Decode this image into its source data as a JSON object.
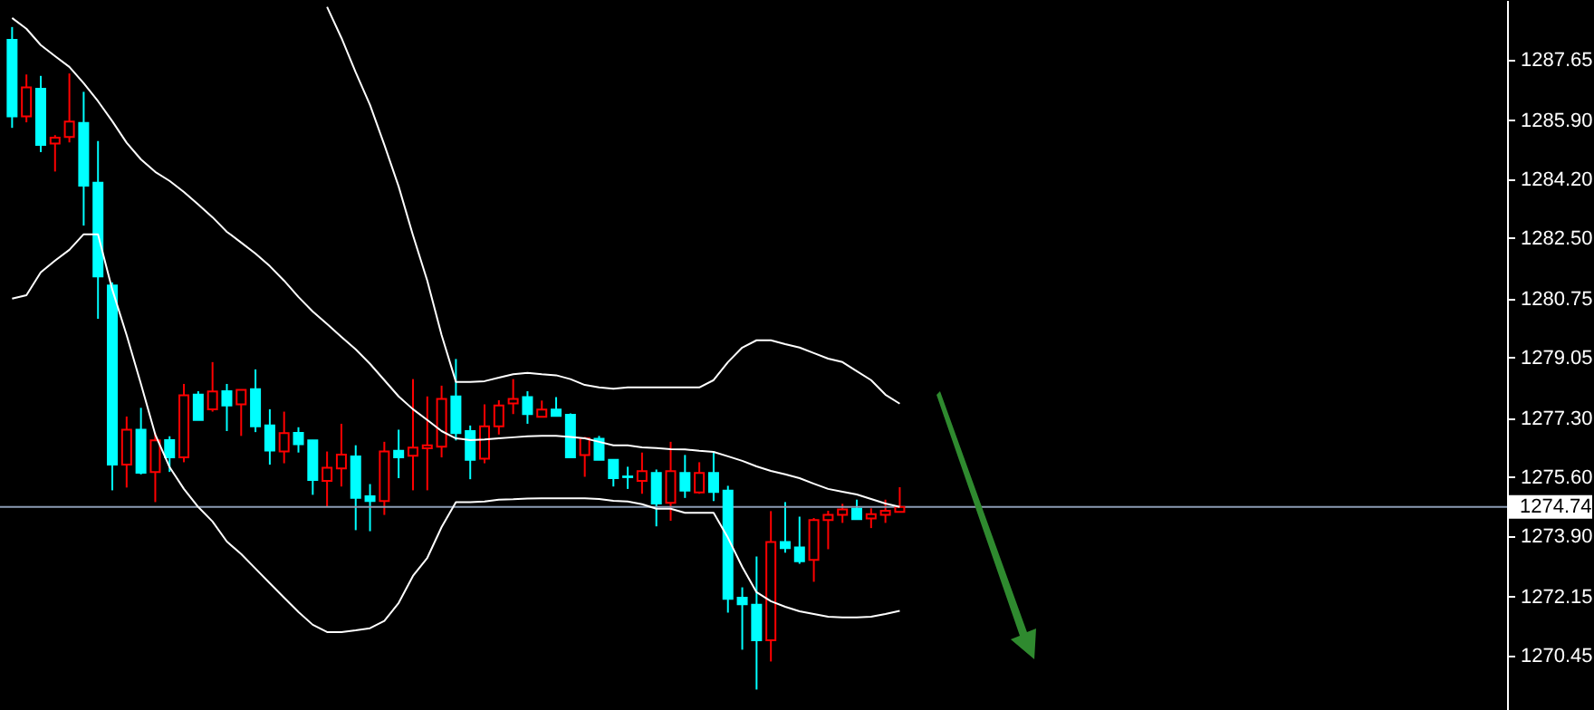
{
  "chart_data": {
    "type": "candlestick",
    "categories": [
      null,
      null,
      null,
      null,
      null,
      null,
      null,
      null,
      null,
      null,
      null,
      null,
      null,
      null,
      null,
      null,
      null,
      null,
      null,
      null,
      null,
      null,
      null,
      null,
      null,
      null,
      null,
      null,
      null,
      null,
      null,
      null,
      null,
      null,
      null,
      null,
      null,
      null,
      null,
      null,
      null,
      null,
      null,
      null,
      null,
      null,
      null,
      null,
      null,
      null,
      null,
      null,
      null,
      null,
      null,
      null,
      null,
      null,
      null,
      null,
      null,
      null,
      null
    ],
    "ohlc": [
      [
        1288.22,
        1288.59,
        1285.68,
        1286.01
      ],
      [
        1286.01,
        1287.22,
        1285.84,
        1286.85
      ],
      [
        1286.81,
        1287.18,
        1284.98,
        1285.19
      ],
      [
        1285.23,
        1285.47,
        1284.42,
        1285.4
      ],
      [
        1285.42,
        1287.25,
        1285.26,
        1285.86
      ],
      [
        1285.82,
        1286.72,
        1282.86,
        1284.01
      ],
      [
        1284.1,
        1285.3,
        1280.17,
        1281.39
      ],
      [
        1281.13,
        1281.22,
        1275.22,
        1275.96
      ],
      [
        1275.96,
        1277.35,
        1275.3,
        1276.97
      ],
      [
        1276.97,
        1277.6,
        1275.68,
        1275.73
      ],
      [
        1275.75,
        1276.87,
        1274.88,
        1276.66
      ],
      [
        1276.67,
        1276.78,
        1275.75,
        1276.17
      ],
      [
        1276.17,
        1278.29,
        1276.03,
        1277.96
      ],
      [
        1277.98,
        1278.08,
        1277.25,
        1277.25
      ],
      [
        1277.56,
        1278.92,
        1277.49,
        1278.07
      ],
      [
        1278.08,
        1278.29,
        1276.93,
        1277.67
      ],
      [
        1277.7,
        1278.12,
        1276.79,
        1278.12
      ],
      [
        1278.14,
        1278.71,
        1276.9,
        1277.07
      ],
      [
        1277.09,
        1277.56,
        1275.96,
        1276.37
      ],
      [
        1276.34,
        1277.49,
        1276.0,
        1276.87
      ],
      [
        1276.88,
        1277.04,
        1276.31,
        1276.55
      ],
      [
        1276.66,
        1276.67,
        1275.09,
        1275.52
      ],
      [
        1275.49,
        1276.34,
        1274.74,
        1275.87
      ],
      [
        1275.85,
        1277.14,
        1275.33,
        1276.25
      ],
      [
        1276.2,
        1276.52,
        1274.07,
        1275.0
      ],
      [
        1275.05,
        1275.4,
        1274.04,
        1274.91
      ],
      [
        1274.91,
        1276.62,
        1274.51,
        1276.34
      ],
      [
        1276.36,
        1276.97,
        1275.57,
        1276.17
      ],
      [
        1276.22,
        1278.43,
        1275.22,
        1276.45
      ],
      [
        1276.43,
        1277.93,
        1275.22,
        1276.52
      ],
      [
        1276.48,
        1278.24,
        1276.17,
        1277.86
      ],
      [
        1277.93,
        1279.01,
        1276.66,
        1276.87
      ],
      [
        1276.93,
        1277.09,
        1275.54,
        1276.1
      ],
      [
        1276.13,
        1277.7,
        1276.0,
        1277.07
      ],
      [
        1277.07,
        1277.82,
        1276.83,
        1277.67
      ],
      [
        1277.73,
        1278.43,
        1277.42,
        1277.86
      ],
      [
        1277.91,
        1278.08,
        1277.14,
        1277.42
      ],
      [
        1277.34,
        1277.81,
        1277.34,
        1277.55
      ],
      [
        1277.55,
        1277.91,
        1277.37,
        1277.37
      ],
      [
        1277.4,
        1277.44,
        1276.17,
        1276.17
      ],
      [
        1276.24,
        1276.76,
        1275.61,
        1276.72
      ],
      [
        1276.71,
        1276.79,
        1276.1,
        1276.1
      ],
      [
        1276.1,
        1276.1,
        1275.33,
        1275.57
      ],
      [
        1275.62,
        1275.9,
        1275.26,
        1275.6
      ],
      [
        1275.49,
        1276.31,
        1275.12,
        1275.77
      ],
      [
        1275.72,
        1275.82,
        1274.18,
        1274.84
      ],
      [
        1274.86,
        1276.62,
        1274.34,
        1275.77
      ],
      [
        1275.72,
        1276.24,
        1275.0,
        1275.21
      ],
      [
        1275.16,
        1276.03,
        1275.12,
        1275.72
      ],
      [
        1275.72,
        1276.31,
        1274.91,
        1275.17
      ],
      [
        1275.21,
        1275.35,
        1271.69,
        1272.09
      ],
      [
        1272.12,
        1272.42,
        1270.62,
        1271.93
      ],
      [
        1271.92,
        1273.31,
        1269.47,
        1270.89
      ],
      [
        1270.89,
        1274.62,
        1270.28,
        1273.73
      ],
      [
        1273.73,
        1274.88,
        1273.42,
        1273.55
      ],
      [
        1273.57,
        1274.46,
        1273.1,
        1273.17
      ],
      [
        1273.21,
        1274.42,
        1272.58,
        1274.36
      ],
      [
        1274.36,
        1274.63,
        1273.52,
        1274.51
      ],
      [
        1274.51,
        1274.83,
        1274.28,
        1274.67
      ],
      [
        1274.69,
        1274.95,
        1274.39,
        1274.39
      ],
      [
        1274.41,
        1274.7,
        1274.13,
        1274.53
      ],
      [
        1274.51,
        1274.95,
        1274.28,
        1274.63
      ],
      [
        1274.6,
        1275.31,
        1274.6,
        1274.74
      ]
    ],
    "colors": [
      "#00ffff",
      "#ff0000",
      "#00ffff",
      "#ff0000",
      "#ff0000",
      "#00ffff",
      "#00ffff",
      "#00ffff",
      "#ff0000",
      "#00ffff",
      "#ff0000",
      "#00ffff",
      "#ff0000",
      "#00ffff",
      "#ff0000",
      "#00ffff",
      "#ff0000",
      "#00ffff",
      "#00ffff",
      "#ff0000",
      "#00ffff",
      "#00ffff",
      "#ff0000",
      "#ff0000",
      "#00ffff",
      "#00ffff",
      "#ff0000",
      "#00ffff",
      "#ff0000",
      "#ff0000",
      "#ff0000",
      "#00ffff",
      "#00ffff",
      "#ff0000",
      "#ff0000",
      "#ff0000",
      "#00ffff",
      "#ff0000",
      "#00ffff",
      "#00ffff",
      "#ff0000",
      "#00ffff",
      "#00ffff",
      "#00ffff",
      "#ff0000",
      "#00ffff",
      "#ff0000",
      "#00ffff",
      "#ff0000",
      "#00ffff",
      "#00ffff",
      "#00ffff",
      "#00ffff",
      "#ff0000",
      "#00ffff",
      "#00ffff",
      "#ff0000",
      "#ff0000",
      "#ff0000",
      "#00ffff",
      "#ff0000",
      "#ff0000",
      "#ff0000"
    ],
    "series": [
      {
        "type": "line",
        "color": "#ffffff",
        "values": [
          null,
          null,
          null,
          null,
          null,
          null,
          null,
          null,
          null,
          null,
          null,
          null,
          null,
          null,
          null,
          null,
          null,
          null,
          null,
          null,
          null,
          null,
          1289.17,
          1288.28,
          1287.28,
          1286.34,
          1285.19,
          1283.99,
          1282.58,
          1281.27,
          1279.7,
          1278.35,
          1278.35,
          1278.37,
          1278.47,
          1278.57,
          1278.61,
          1278.57,
          1278.54,
          1278.43,
          1278.26,
          1278.19,
          1278.15,
          1278.19,
          1278.19,
          1278.19,
          1278.19,
          1278.19,
          1278.19,
          1278.4,
          1278.92,
          1279.34,
          1279.55,
          1279.55,
          1279.44,
          1279.34,
          1279.18,
          1279.02,
          1278.92,
          1278.66,
          1278.4,
          1277.98,
          1277.72
        ]
      },
      {
        "type": "line",
        "color": "#ffffff",
        "values": [
          1288.85,
          1288.54,
          1288.07,
          1287.75,
          1287.44,
          1286.97,
          1286.45,
          1285.87,
          1285.25,
          1284.77,
          1284.41,
          1284.15,
          1283.83,
          1283.47,
          1283.1,
          1282.68,
          1282.37,
          1282.05,
          1281.69,
          1281.27,
          1280.8,
          1280.38,
          1280.02,
          1279.65,
          1279.29,
          1278.87,
          1278.4,
          1277.93,
          1277.56,
          1277.25,
          1276.93,
          1276.72,
          1276.67,
          1276.69,
          1276.72,
          1276.75,
          1276.78,
          1276.79,
          1276.79,
          1276.76,
          1276.72,
          1276.62,
          1276.52,
          1276.52,
          1276.46,
          1276.44,
          1276.41,
          1276.4,
          1276.36,
          1276.33,
          1276.2,
          1276.07,
          1275.91,
          1275.78,
          1275.68,
          1275.57,
          1275.41,
          1275.26,
          1275.18,
          1275.1,
          1274.97,
          1274.84,
          1274.74
        ]
      },
      {
        "type": "line",
        "color": "#ffffff",
        "values": [
          1280.75,
          1280.85,
          1281.51,
          1281.85,
          1282.16,
          1282.61,
          1282.61,
          1281.01,
          1279.7,
          1278.29,
          1276.83,
          1275.89,
          1275.26,
          1274.74,
          1274.32,
          1273.74,
          1273.38,
          1272.96,
          1272.54,
          1272.12,
          1271.71,
          1271.34,
          1271.13,
          1271.13,
          1271.18,
          1271.24,
          1271.45,
          1271.97,
          1272.75,
          1273.27,
          1274.16,
          1274.88,
          1274.88,
          1274.9,
          1274.95,
          1274.96,
          1274.98,
          1274.99,
          1274.99,
          1274.99,
          1274.99,
          1274.97,
          1274.92,
          1274.9,
          1274.82,
          1274.69,
          1274.69,
          1274.57,
          1274.57,
          1274.57,
          1273.85,
          1273.01,
          1272.28,
          1272.02,
          1271.86,
          1271.73,
          1271.65,
          1271.57,
          1271.55,
          1271.55,
          1271.57,
          1271.65,
          1271.74
        ]
      }
    ],
    "ylim": [
      1268.88,
      1289.37
    ],
    "yticks": [
      {
        "value": 1270.45,
        "label": "1270.45"
      },
      {
        "value": 1272.15,
        "label": "1272.15"
      },
      {
        "value": 1273.9,
        "label": "1273.90"
      },
      {
        "value": 1275.6,
        "label": "1275.60"
      },
      {
        "value": 1277.3,
        "label": "1277.30"
      },
      {
        "value": 1279.05,
        "label": "1279.05"
      },
      {
        "value": 1280.75,
        "label": "1280.75"
      },
      {
        "value": 1282.5,
        "label": "1282.50"
      },
      {
        "value": 1284.2,
        "label": "1284.20"
      },
      {
        "value": 1285.9,
        "label": "1285.90"
      },
      {
        "value": 1287.65,
        "label": "1287.65"
      }
    ],
    "ref_lines": [
      {
        "axis": "y",
        "value": 1274.74,
        "label": "1274.74",
        "color": "#8c9cb4"
      }
    ],
    "tick_labels": "y",
    "grid": false
  }
}
